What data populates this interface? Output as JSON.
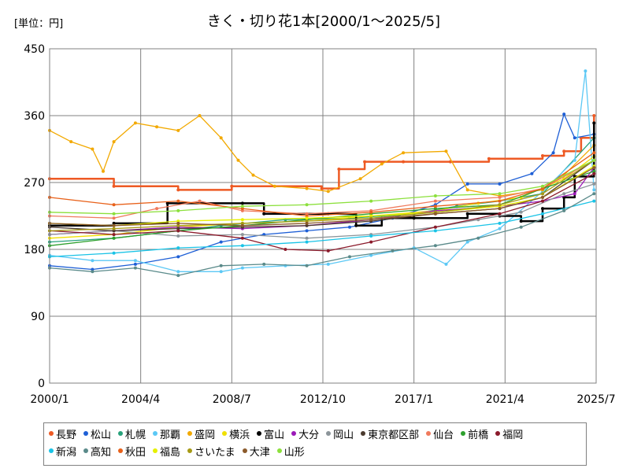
{
  "chart_data": {
    "type": "line",
    "title": "きく・切り花1本[2000/1～2025/5]",
    "unit_label": "[単位：円]",
    "xlabel": "",
    "ylabel": "",
    "ylim": [
      0,
      450
    ],
    "y_ticks": [
      0,
      90,
      180,
      270,
      360,
      450
    ],
    "x_range": [
      2000.0,
      2025.5
    ],
    "x_ticks": [
      {
        "label": "2000/1",
        "value": 2000.0
      },
      {
        "label": "2004/4",
        "value": 2004.25
      },
      {
        "label": "2008/7",
        "value": 2008.5
      },
      {
        "label": "2012/10",
        "value": 2012.75
      },
      {
        "label": "2017/1",
        "value": 2017.0
      },
      {
        "label": "2021/4",
        "value": 2021.25
      },
      {
        "label": "2025/7",
        "value": 2025.5
      }
    ],
    "grid": true,
    "legend_position": "bottom",
    "series": [
      {
        "name": "長野",
        "color": "#EE5A24",
        "step": true,
        "points": [
          [
            2000.0,
            275
          ],
          [
            2003.0,
            265
          ],
          [
            2006.0,
            260
          ],
          [
            2008.5,
            265
          ],
          [
            2012.7,
            262
          ],
          [
            2013.5,
            288
          ],
          [
            2014.7,
            298
          ],
          [
            2016.5,
            298
          ],
          [
            2018.7,
            298
          ],
          [
            2020.5,
            302
          ],
          [
            2023.0,
            306
          ],
          [
            2024.0,
            312
          ],
          [
            2024.8,
            330
          ],
          [
            2025.4,
            360
          ]
        ]
      },
      {
        "name": "松山",
        "color": "#1E5FD6",
        "step": false,
        "points": [
          [
            2000.0,
            158
          ],
          [
            2002.0,
            153
          ],
          [
            2004.0,
            160
          ],
          [
            2006.0,
            170
          ],
          [
            2008.0,
            190
          ],
          [
            2010.0,
            200
          ],
          [
            2012.0,
            205
          ],
          [
            2014.0,
            210
          ],
          [
            2016.0,
            222
          ],
          [
            2018.0,
            240
          ],
          [
            2019.5,
            268
          ],
          [
            2021.0,
            268
          ],
          [
            2022.5,
            282
          ],
          [
            2023.5,
            310
          ],
          [
            2024.0,
            362
          ],
          [
            2024.5,
            330
          ],
          [
            2025.4,
            335
          ]
        ]
      },
      {
        "name": "札幌",
        "color": "#27A17A",
        "step": false,
        "points": [
          [
            2000.0,
            190
          ],
          [
            2003.0,
            195
          ],
          [
            2006.0,
            205
          ],
          [
            2008.0,
            212
          ],
          [
            2011.0,
            220
          ],
          [
            2014.0,
            222
          ],
          [
            2017.0,
            228
          ],
          [
            2019.0,
            238
          ],
          [
            2021.0,
            245
          ],
          [
            2023.0,
            255
          ],
          [
            2025.4,
            330
          ]
        ]
      },
      {
        "name": "那覇",
        "color": "#5BC8F5",
        "step": false,
        "points": [
          [
            2000.0,
            172
          ],
          [
            2002.0,
            165
          ],
          [
            2004.0,
            165
          ],
          [
            2006.0,
            150
          ],
          [
            2008.0,
            150
          ],
          [
            2009.0,
            155
          ],
          [
            2011.0,
            158
          ],
          [
            2013.0,
            160
          ],
          [
            2015.0,
            172
          ],
          [
            2017.0,
            182
          ],
          [
            2018.5,
            160
          ],
          [
            2019.5,
            190
          ],
          [
            2021.0,
            208
          ],
          [
            2023.0,
            258
          ],
          [
            2024.5,
            300
          ],
          [
            2025.0,
            420
          ],
          [
            2025.4,
            260
          ]
        ]
      },
      {
        "name": "盛岡",
        "color": "#F2A900",
        "step": false,
        "points": [
          [
            2000.0,
            340
          ],
          [
            2001.0,
            325
          ],
          [
            2002.0,
            315
          ],
          [
            2002.5,
            285
          ],
          [
            2003.0,
            325
          ],
          [
            2004.0,
            350
          ],
          [
            2005.0,
            345
          ],
          [
            2006.0,
            340
          ],
          [
            2007.0,
            360
          ],
          [
            2008.0,
            330
          ],
          [
            2008.8,
            300
          ],
          [
            2009.5,
            280
          ],
          [
            2010.5,
            265
          ],
          [
            2012.0,
            262
          ],
          [
            2013.0,
            258
          ],
          [
            2014.5,
            275
          ],
          [
            2015.5,
            295
          ],
          [
            2016.5,
            310
          ],
          [
            2018.5,
            312
          ],
          [
            2019.5,
            260
          ],
          [
            2021.0,
            252
          ],
          [
            2023.0,
            260
          ],
          [
            2024.0,
            280
          ],
          [
            2025.4,
            320
          ]
        ]
      },
      {
        "name": "横浜",
        "color": "#F0E000",
        "step": false,
        "points": [
          [
            2000.0,
            195
          ],
          [
            2003.0,
            200
          ],
          [
            2006.0,
            210
          ],
          [
            2009.0,
            215
          ],
          [
            2012.0,
            218
          ],
          [
            2015.0,
            225
          ],
          [
            2018.0,
            232
          ],
          [
            2020.0,
            242
          ],
          [
            2022.0,
            250
          ],
          [
            2024.0,
            275
          ],
          [
            2025.4,
            305
          ]
        ]
      },
      {
        "name": "富山",
        "color": "#000000",
        "step": true,
        "points": [
          [
            2000.0,
            212
          ],
          [
            2003.0,
            215
          ],
          [
            2005.5,
            242
          ],
          [
            2009.0,
            242
          ],
          [
            2010.0,
            228
          ],
          [
            2013.0,
            228
          ],
          [
            2014.3,
            212
          ],
          [
            2015.5,
            222
          ],
          [
            2017.0,
            222
          ],
          [
            2019.5,
            228
          ],
          [
            2021.0,
            225
          ],
          [
            2022.0,
            218
          ],
          [
            2023.0,
            235
          ],
          [
            2024.0,
            250
          ],
          [
            2024.5,
            278
          ],
          [
            2025.4,
            350
          ]
        ]
      },
      {
        "name": "大分",
        "color": "#9B19B8",
        "step": false,
        "points": [
          [
            2000.0,
            200
          ],
          [
            2003.0,
            205
          ],
          [
            2006.0,
            210
          ],
          [
            2009.0,
            208
          ],
          [
            2012.0,
            212
          ],
          [
            2015.0,
            220
          ],
          [
            2018.0,
            232
          ],
          [
            2021.0,
            238
          ],
          [
            2023.0,
            245
          ],
          [
            2024.5,
            255
          ],
          [
            2025.4,
            290
          ]
        ]
      },
      {
        "name": "岡山",
        "color": "#8C959A",
        "step": false,
        "points": [
          [
            2000.0,
            200
          ],
          [
            2003.0,
            205
          ],
          [
            2006.0,
            198
          ],
          [
            2009.0,
            200
          ],
          [
            2012.0,
            195
          ],
          [
            2015.0,
            200
          ],
          [
            2018.0,
            210
          ],
          [
            2020.0,
            220
          ],
          [
            2022.0,
            230
          ],
          [
            2024.0,
            255
          ],
          [
            2025.4,
            268
          ]
        ]
      },
      {
        "name": "東京都区部",
        "color": "#4A3A2E",
        "step": false,
        "points": [
          [
            2000.0,
            210
          ],
          [
            2003.0,
            205
          ],
          [
            2006.0,
            208
          ],
          [
            2009.0,
            210
          ],
          [
            2012.0,
            212
          ],
          [
            2015.0,
            218
          ],
          [
            2018.0,
            228
          ],
          [
            2021.0,
            235
          ],
          [
            2023.0,
            250
          ],
          [
            2025.4,
            300
          ]
        ]
      },
      {
        "name": "仙台",
        "color": "#F07A5C",
        "step": false,
        "points": [
          [
            2000.0,
            225
          ],
          [
            2003.0,
            222
          ],
          [
            2005.0,
            235
          ],
          [
            2007.0,
            245
          ],
          [
            2009.0,
            232
          ],
          [
            2012.0,
            228
          ],
          [
            2015.0,
            232
          ],
          [
            2018.0,
            245
          ],
          [
            2021.0,
            250
          ],
          [
            2023.0,
            262
          ],
          [
            2025.4,
            300
          ]
        ]
      },
      {
        "name": "前橋",
        "color": "#2DA02D",
        "step": false,
        "points": [
          [
            2000.0,
            185
          ],
          [
            2003.0,
            195
          ],
          [
            2006.0,
            205
          ],
          [
            2009.0,
            212
          ],
          [
            2012.0,
            220
          ],
          [
            2015.0,
            228
          ],
          [
            2018.0,
            235
          ],
          [
            2021.0,
            240
          ],
          [
            2023.0,
            262
          ],
          [
            2025.4,
            285
          ]
        ]
      },
      {
        "name": "福岡",
        "color": "#8B1A2B",
        "step": false,
        "points": [
          [
            2000.0,
            205
          ],
          [
            2003.0,
            200
          ],
          [
            2006.0,
            205
          ],
          [
            2009.0,
            195
          ],
          [
            2011.0,
            180
          ],
          [
            2013.0,
            178
          ],
          [
            2015.0,
            190
          ],
          [
            2018.0,
            210
          ],
          [
            2021.0,
            228
          ],
          [
            2023.0,
            245
          ],
          [
            2025.4,
            282
          ]
        ]
      },
      {
        "name": "新潟",
        "color": "#19C3E6",
        "step": false,
        "points": [
          [
            2000.0,
            170
          ],
          [
            2003.0,
            175
          ],
          [
            2006.0,
            182
          ],
          [
            2009.0,
            185
          ],
          [
            2012.0,
            190
          ],
          [
            2015.0,
            198
          ],
          [
            2018.0,
            205
          ],
          [
            2021.0,
            215
          ],
          [
            2023.0,
            228
          ],
          [
            2025.4,
            245
          ]
        ]
      },
      {
        "name": "高知",
        "color": "#5A8A8A",
        "step": false,
        "points": [
          [
            2000.0,
            155
          ],
          [
            2002.0,
            150
          ],
          [
            2004.0,
            155
          ],
          [
            2006.0,
            145
          ],
          [
            2008.0,
            158
          ],
          [
            2010.0,
            160
          ],
          [
            2012.0,
            158
          ],
          [
            2014.0,
            170
          ],
          [
            2016.0,
            178
          ],
          [
            2018.0,
            185
          ],
          [
            2020.0,
            195
          ],
          [
            2022.0,
            210
          ],
          [
            2024.0,
            232
          ],
          [
            2025.4,
            255
          ]
        ]
      },
      {
        "name": "秋田",
        "color": "#E8611A",
        "step": false,
        "points": [
          [
            2000.0,
            250
          ],
          [
            2003.0,
            240
          ],
          [
            2006.0,
            245
          ],
          [
            2009.0,
            235
          ],
          [
            2012.0,
            225
          ],
          [
            2015.0,
            230
          ],
          [
            2018.0,
            238
          ],
          [
            2021.0,
            245
          ],
          [
            2023.0,
            262
          ],
          [
            2025.4,
            310
          ]
        ]
      },
      {
        "name": "福島",
        "color": "#E6F000",
        "step": false,
        "points": [
          [
            2000.0,
            215
          ],
          [
            2003.0,
            212
          ],
          [
            2006.0,
            218
          ],
          [
            2009.0,
            220
          ],
          [
            2012.0,
            222
          ],
          [
            2015.0,
            225
          ],
          [
            2018.0,
            230
          ],
          [
            2021.0,
            238
          ],
          [
            2023.0,
            250
          ],
          [
            2025.4,
            292
          ]
        ]
      },
      {
        "name": "さいたま",
        "color": "#A69A14",
        "step": false,
        "points": [
          [
            2000.0,
            205
          ],
          [
            2003.0,
            208
          ],
          [
            2006.0,
            212
          ],
          [
            2009.0,
            215
          ],
          [
            2012.0,
            218
          ],
          [
            2015.0,
            222
          ],
          [
            2018.0,
            230
          ],
          [
            2021.0,
            240
          ],
          [
            2023.0,
            255
          ],
          [
            2025.4,
            300
          ]
        ]
      },
      {
        "name": "大津",
        "color": "#8B5A2B",
        "step": false,
        "points": [
          [
            2000.0,
            215
          ],
          [
            2003.0,
            212
          ],
          [
            2006.0,
            215
          ],
          [
            2009.0,
            212
          ],
          [
            2012.0,
            215
          ],
          [
            2015.0,
            220
          ],
          [
            2018.0,
            228
          ],
          [
            2021.0,
            235
          ],
          [
            2023.0,
            250
          ],
          [
            2025.4,
            290
          ]
        ]
      },
      {
        "name": "山形",
        "color": "#8CE03C",
        "step": false,
        "points": [
          [
            2000.0,
            230
          ],
          [
            2003.0,
            228
          ],
          [
            2006.0,
            232
          ],
          [
            2009.0,
            238
          ],
          [
            2012.0,
            240
          ],
          [
            2015.0,
            245
          ],
          [
            2018.0,
            252
          ],
          [
            2021.0,
            255
          ],
          [
            2023.0,
            265
          ],
          [
            2025.4,
            300
          ]
        ]
      }
    ]
  }
}
